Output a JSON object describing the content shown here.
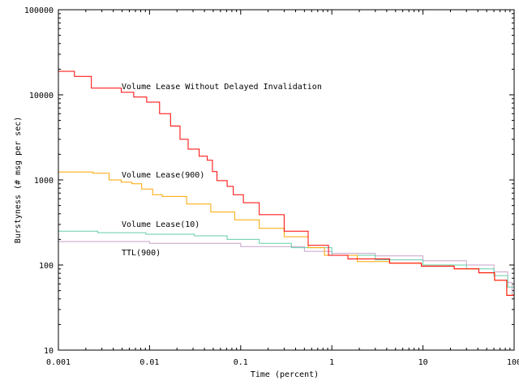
{
  "chart_data": {
    "type": "line",
    "title": "",
    "xlabel": "Time (percent)",
    "ylabel": "Burstyness (# msg per sec)",
    "xscale": "log",
    "yscale": "log",
    "xlim": [
      0.001,
      100
    ],
    "ylim": [
      10,
      100000
    ],
    "xticks": [
      "0.001",
      "0.01",
      "0.1",
      "1",
      "10",
      "100"
    ],
    "yticks": [
      "10",
      "100",
      "1000",
      "10000",
      "100000"
    ],
    "grid": false,
    "legend": "inline labels",
    "series": [
      {
        "name": "Volume Lease Without Delayed Invalidation",
        "color": "#ff0000",
        "points": [
          [
            0.001,
            18900
          ],
          [
            0.00123,
            18900
          ],
          [
            0.0015,
            16500
          ],
          [
            0.0023,
            12000
          ],
          [
            0.0049,
            10700
          ],
          [
            0.0067,
            9400
          ],
          [
            0.0093,
            8200
          ],
          [
            0.0129,
            6000
          ],
          [
            0.017,
            4300
          ],
          [
            0.0216,
            3000
          ],
          [
            0.0265,
            2300
          ],
          [
            0.035,
            1900
          ],
          [
            0.043,
            1700
          ],
          [
            0.049,
            1250
          ],
          [
            0.055,
            980
          ],
          [
            0.071,
            840
          ],
          [
            0.083,
            670
          ],
          [
            0.107,
            540
          ],
          [
            0.16,
            390
          ],
          [
            0.3,
            250
          ],
          [
            0.55,
            170
          ],
          [
            0.92,
            130
          ],
          [
            1.5,
            118
          ],
          [
            4.3,
            105
          ],
          [
            9.6,
            97
          ],
          [
            22,
            90
          ],
          [
            41,
            81
          ],
          [
            61,
            66
          ],
          [
            83,
            44
          ],
          [
            100,
            25
          ]
        ]
      },
      {
        "name": "Volume Lease(900)",
        "color": "#ffa500",
        "points": [
          [
            0.001,
            1240
          ],
          [
            0.0016,
            1240
          ],
          [
            0.0024,
            1200
          ],
          [
            0.0036,
            1000
          ],
          [
            0.0049,
            940
          ],
          [
            0.0064,
            900
          ],
          [
            0.0082,
            780
          ],
          [
            0.0108,
            670
          ],
          [
            0.0138,
            640
          ],
          [
            0.0255,
            520
          ],
          [
            0.047,
            420
          ],
          [
            0.086,
            340
          ],
          [
            0.16,
            270
          ],
          [
            0.3,
            215
          ],
          [
            0.55,
            160
          ],
          [
            0.83,
            130
          ],
          [
            1.9,
            110
          ],
          [
            4.3,
            105
          ],
          [
            9.6,
            97
          ],
          [
            22,
            90
          ],
          [
            41,
            81
          ],
          [
            61,
            66
          ],
          [
            83,
            44
          ],
          [
            100,
            25
          ]
        ]
      },
      {
        "name": "Volume Lease(10)",
        "color": "#66cdaa",
        "points": [
          [
            0.001,
            250
          ],
          [
            0.0027,
            240
          ],
          [
            0.0091,
            230
          ],
          [
            0.031,
            220
          ],
          [
            0.071,
            200
          ],
          [
            0.16,
            180
          ],
          [
            0.36,
            160
          ],
          [
            1,
            130
          ],
          [
            3,
            115
          ],
          [
            10,
            100
          ],
          [
            30,
            90
          ],
          [
            60,
            75
          ],
          [
            85,
            55
          ],
          [
            100,
            35
          ]
        ]
      },
      {
        "name": "TTL(900)",
        "color": "#c8a2c8",
        "points": [
          [
            0.001,
            189
          ],
          [
            0.01,
            180
          ],
          [
            0.1,
            165
          ],
          [
            0.5,
            145
          ],
          [
            1,
            137
          ],
          [
            3,
            128
          ],
          [
            10,
            112
          ],
          [
            30,
            100
          ],
          [
            60,
            83
          ],
          [
            85,
            62
          ],
          [
            95,
            45
          ],
          [
            100,
            10
          ]
        ]
      }
    ]
  }
}
